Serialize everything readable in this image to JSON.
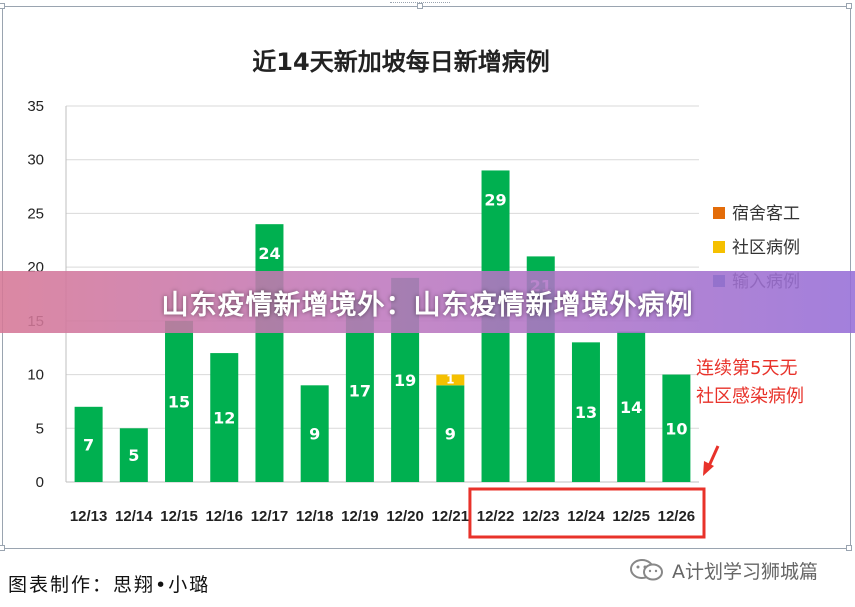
{
  "banner": {
    "text": "山东疫情新增境外：山东疫情新增境外病例"
  },
  "credit": {
    "text": "图表制作：思翔•小璐"
  },
  "watermark": {
    "text": "A计划学习狮城篇"
  },
  "annotation": {
    "line1": "连续第5天无",
    "line2": "社区感染病例"
  },
  "colors": {
    "dorm": "#e36c09",
    "community": "#f5c000",
    "imported": "#2e75b6",
    "bar_main": "#00b050",
    "annotation": "#e8322a"
  },
  "chart_data": {
    "type": "bar",
    "title": "近14天新加坡每日新增病例",
    "xlabel": "",
    "ylabel": "",
    "ylim": [
      0,
      35
    ],
    "yticks": [
      0,
      5,
      10,
      15,
      20,
      25,
      30,
      35
    ],
    "categories": [
      "12/13",
      "12/14",
      "12/15",
      "12/16",
      "12/17",
      "12/18",
      "12/19",
      "12/20",
      "12/21",
      "12/22",
      "12/23",
      "12/24",
      "12/25",
      "12/26"
    ],
    "legend_position": "right",
    "legend": [
      {
        "label": "宿舍客工",
        "color": "#e36c09"
      },
      {
        "label": "社区病例",
        "color": "#f5c000"
      },
      {
        "label": "输入病例",
        "color": "#2e75b6"
      }
    ],
    "series": [
      {
        "key": "imported",
        "color": "#00b050",
        "values": [
          7,
          5,
          15,
          12,
          24,
          9,
          17,
          19,
          9,
          29,
          21,
          13,
          14,
          10
        ]
      },
      {
        "key": "community",
        "color": "#f5c000",
        "values": [
          0,
          0,
          0,
          0,
          0,
          0,
          0,
          0,
          1,
          0,
          0,
          0,
          0,
          0
        ]
      }
    ],
    "bar_labels": [
      "7",
      "5",
      "15",
      "12",
      "24",
      "9",
      "17",
      "19",
      "9",
      "29",
      "21",
      "13",
      "14",
      "10"
    ],
    "community_labels": [
      "",
      "",
      "",
      "",
      "",
      "",
      "",
      "",
      "1",
      "",
      "",
      "",
      "",
      ""
    ],
    "highlight_range": [
      "12/22",
      "12/26"
    ]
  }
}
